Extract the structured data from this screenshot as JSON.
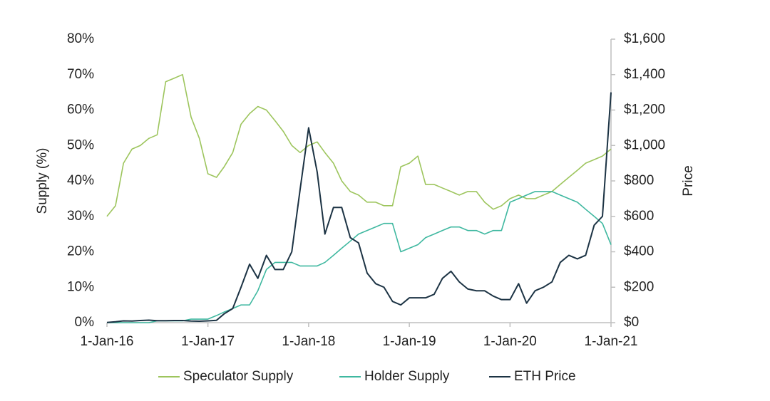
{
  "chart_data": {
    "type": "line",
    "y_label": "Supply (%)",
    "y2_label": "Price",
    "x": [
      "2016-01-01",
      "2016-02-01",
      "2016-03-01",
      "2016-04-01",
      "2016-05-01",
      "2016-06-01",
      "2016-07-01",
      "2016-08-01",
      "2016-09-01",
      "2016-10-01",
      "2016-11-01",
      "2016-12-01",
      "2017-01-01",
      "2017-02-01",
      "2017-03-01",
      "2017-04-01",
      "2017-05-01",
      "2017-06-01",
      "2017-07-01",
      "2017-08-01",
      "2017-09-01",
      "2017-10-01",
      "2017-11-01",
      "2017-12-01",
      "2018-01-01",
      "2018-02-01",
      "2018-03-01",
      "2018-04-01",
      "2018-05-01",
      "2018-06-01",
      "2018-07-01",
      "2018-08-01",
      "2018-09-01",
      "2018-10-01",
      "2018-11-01",
      "2018-12-01",
      "2019-01-01",
      "2019-02-01",
      "2019-03-01",
      "2019-04-01",
      "2019-05-01",
      "2019-06-01",
      "2019-07-01",
      "2019-08-01",
      "2019-09-01",
      "2019-10-01",
      "2019-11-01",
      "2019-12-01",
      "2020-01-01",
      "2020-02-01",
      "2020-03-01",
      "2020-04-01",
      "2020-05-01",
      "2020-06-01",
      "2020-07-01",
      "2020-08-01",
      "2020-09-01",
      "2020-10-01",
      "2020-11-01",
      "2020-12-01",
      "2021-01-01"
    ],
    "series": [
      {
        "name": "Speculator Supply",
        "color": "#9dc55d",
        "axis": "y",
        "values": [
          30,
          33,
          45,
          49,
          50,
          52,
          53,
          68,
          69,
          70,
          58,
          52,
          42,
          41,
          44,
          48,
          56,
          59,
          61,
          60,
          57,
          54,
          50,
          48,
          50,
          51,
          48,
          45,
          40,
          37,
          36,
          34,
          34,
          33,
          33,
          44,
          45,
          47,
          39,
          39,
          38,
          37,
          36,
          37,
          37,
          34,
          32,
          33,
          35,
          36,
          35,
          35,
          36,
          37,
          39,
          41,
          43,
          45,
          46,
          47,
          49
        ]
      },
      {
        "name": "Holder Supply",
        "color": "#3fb8a0",
        "axis": "y",
        "values": [
          0,
          0,
          0,
          0,
          0,
          0,
          0.5,
          0.5,
          0.5,
          0.5,
          1,
          1,
          1,
          2,
          3,
          4,
          5,
          5,
          9,
          15,
          17,
          17,
          17,
          16,
          16,
          16,
          17,
          19,
          21,
          23,
          25,
          26,
          27,
          28,
          28,
          20,
          21,
          22,
          24,
          25,
          26,
          27,
          27,
          26,
          26,
          25,
          26,
          26,
          34,
          35,
          36,
          37,
          37,
          37,
          36,
          35,
          34,
          32,
          30,
          28,
          22
        ]
      },
      {
        "name": "ETH Price",
        "color": "#1c3344",
        "axis": "y2",
        "values": [
          1,
          5,
          10,
          9,
          12,
          14,
          11,
          11,
          12,
          12,
          9,
          8,
          10,
          13,
          50,
          80,
          200,
          330,
          250,
          380,
          300,
          300,
          400,
          750,
          1100,
          850,
          500,
          650,
          650,
          480,
          450,
          280,
          220,
          200,
          120,
          100,
          140,
          140,
          140,
          160,
          250,
          290,
          230,
          190,
          180,
          180,
          150,
          130,
          130,
          220,
          110,
          180,
          200,
          230,
          340,
          380,
          360,
          380,
          550,
          600,
          1300
        ]
      }
    ],
    "xlim": [
      "2016-01-01",
      "2021-01-01"
    ],
    "xticks": [
      {
        "value": "2016-01-01",
        "label": "1-Jan-16"
      },
      {
        "value": "2017-01-01",
        "label": "1-Jan-17"
      },
      {
        "value": "2018-01-01",
        "label": "1-Jan-18"
      },
      {
        "value": "2019-01-01",
        "label": "1-Jan-19"
      },
      {
        "value": "2020-01-01",
        "label": "1-Jan-20"
      },
      {
        "value": "2021-01-01",
        "label": "1-Jan-21"
      }
    ],
    "ylim": [
      0,
      80
    ],
    "yticks": [
      {
        "value": 0,
        "label": "0%"
      },
      {
        "value": 10,
        "label": "10%"
      },
      {
        "value": 20,
        "label": "20%"
      },
      {
        "value": 30,
        "label": "30%"
      },
      {
        "value": 40,
        "label": "40%"
      },
      {
        "value": 50,
        "label": "50%"
      },
      {
        "value": 60,
        "label": "60%"
      },
      {
        "value": 70,
        "label": "70%"
      },
      {
        "value": 80,
        "label": "80%"
      }
    ],
    "y2lim": [
      0,
      1600
    ],
    "y2ticks": [
      {
        "value": 0,
        "label": "$0"
      },
      {
        "value": 200,
        "label": "$200"
      },
      {
        "value": 400,
        "label": "$400"
      },
      {
        "value": 600,
        "label": "$600"
      },
      {
        "value": 800,
        "label": "$800"
      },
      {
        "value": 1000,
        "label": "$1,000"
      },
      {
        "value": 1200,
        "label": "$1,200"
      },
      {
        "value": 1400,
        "label": "$1,400"
      },
      {
        "value": 1600,
        "label": "$1,600"
      }
    ],
    "grid": false,
    "legend": "bottom"
  }
}
